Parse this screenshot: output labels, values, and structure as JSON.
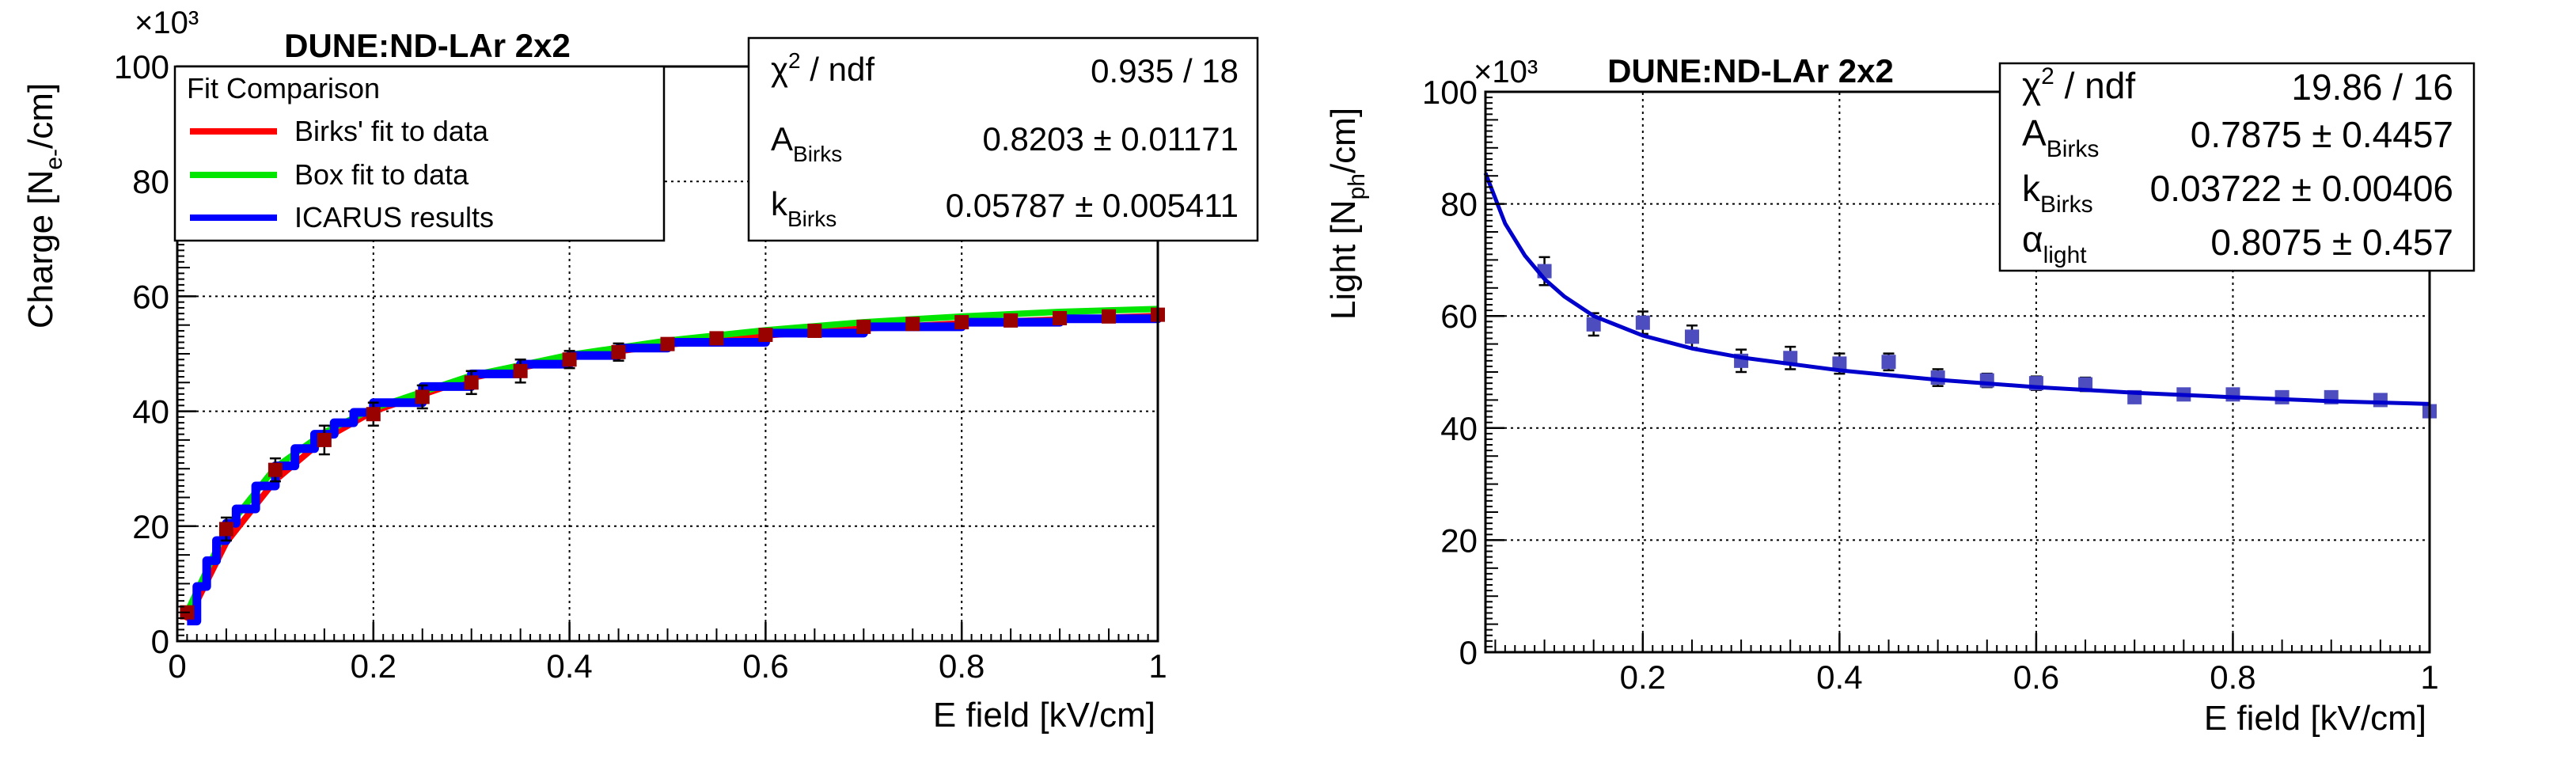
{
  "chart_data": [
    {
      "type": "scatter",
      "title": "DUNE:ND-LAr 2x2",
      "xlabel": "E field [kV/cm]",
      "ylabel": "Charge [N_e-/cm]",
      "y_multiplier": "×10³",
      "xlim": [
        0,
        1
      ],
      "ylim": [
        0,
        100
      ],
      "grid": true,
      "xticks": [
        0,
        0.2,
        0.4,
        0.6,
        0.8,
        1
      ],
      "xtick_labels": [
        "0",
        "0.2",
        "0.4",
        "0.6",
        "0.8",
        "1"
      ],
      "yticks": [
        0,
        20,
        40,
        60,
        80,
        100
      ],
      "ytick_labels": [
        "0",
        "20",
        "40",
        "60",
        "80",
        "100"
      ],
      "legend": {
        "title": "Fit Comparison",
        "placement": "top-left",
        "entries": [
          {
            "label": "Birks' fit to data",
            "color": "#ff0000"
          },
          {
            "label": "Box fit to data",
            "color": "#00e600"
          },
          {
            "label": "ICARUS results",
            "color": "#0000ff"
          }
        ]
      },
      "stats_box": {
        "placement": "top-right",
        "rows": [
          {
            "label": "χ² / ndf",
            "value": "0.935 / 18"
          },
          {
            "label": "A_Birks",
            "value": "0.8203 ± 0.01171"
          },
          {
            "label": "k_Birks",
            "value": "0.05787 ± 0.005411"
          }
        ]
      },
      "series": [
        {
          "name": "data",
          "color": "#990000",
          "x": [
            0.01,
            0.05,
            0.1,
            0.15,
            0.2,
            0.25,
            0.3,
            0.35,
            0.4,
            0.45,
            0.5,
            0.55,
            0.6,
            0.65,
            0.7,
            0.75,
            0.8,
            0.85,
            0.9,
            0.95,
            1.0
          ],
          "y": [
            5.0,
            19.5,
            29.8,
            35.0,
            39.5,
            42.5,
            45.0,
            47.0,
            49.0,
            50.3,
            51.7,
            52.7,
            53.3,
            54.0,
            54.7,
            55.2,
            55.5,
            55.8,
            56.2,
            56.5,
            56.8
          ],
          "yerr": [
            1.0,
            2.0,
            2.0,
            2.5,
            2.0,
            2.0,
            2.0,
            2.0,
            1.5,
            1.5,
            1.0,
            1.0,
            1.0,
            1.0,
            0.8,
            0.8,
            0.8,
            0.8,
            0.8,
            0.8,
            0.8
          ]
        },
        {
          "name": "Birks' fit to data",
          "color": "#ff0000",
          "x": [
            0.01,
            0.05,
            0.1,
            0.15,
            0.2,
            0.3,
            0.4,
            0.5,
            0.6,
            0.7,
            0.8,
            0.9,
            1.0
          ],
          "y": [
            3.5,
            17.2,
            28.0,
            35.2,
            40.0,
            45.8,
            49.3,
            51.6,
            53.2,
            54.4,
            55.3,
            56.0,
            56.6
          ]
        },
        {
          "name": "Box fit to data",
          "color": "#00e600",
          "x": [
            0.01,
            0.05,
            0.1,
            0.15,
            0.2,
            0.3,
            0.4,
            0.5,
            0.6,
            0.7,
            0.8,
            0.9,
            1.0
          ],
          "y": [
            5.0,
            19.5,
            30.2,
            36.3,
            40.5,
            46.2,
            49.8,
            52.3,
            54.1,
            55.5,
            56.5,
            57.3,
            57.8
          ]
        },
        {
          "name": "ICARUS results",
          "color": "#0000ff",
          "x": [
            0.01,
            0.02,
            0.03,
            0.04,
            0.05,
            0.06,
            0.08,
            0.1,
            0.12,
            0.14,
            0.16,
            0.18,
            0.2,
            0.25,
            0.3,
            0.35,
            0.4,
            0.45,
            0.5,
            0.6,
            0.7,
            0.8,
            0.9,
            1.0
          ],
          "y": [
            3.5,
            9.5,
            14.0,
            17.5,
            20.5,
            23.0,
            27.0,
            30.5,
            33.5,
            36.0,
            38.0,
            39.8,
            41.5,
            44.3,
            46.5,
            48.2,
            49.7,
            51.0,
            52.0,
            53.6,
            54.7,
            55.5,
            56.1,
            56.5
          ]
        }
      ]
    },
    {
      "type": "scatter",
      "title": "DUNE:ND-LAr 2x2",
      "xlabel": "E field [kV/cm]",
      "ylabel": "Light [N_ph/cm]",
      "y_multiplier": "×10³",
      "xlim": [
        0.04,
        1
      ],
      "ylim": [
        0,
        100
      ],
      "grid": true,
      "xticks": [
        0.2,
        0.4,
        0.6,
        0.8,
        1
      ],
      "xtick_labels": [
        "0.2",
        "0.4",
        "0.6",
        "0.8",
        "1"
      ],
      "yticks": [
        0,
        20,
        40,
        60,
        80,
        100
      ],
      "ytick_labels": [
        "0",
        "20",
        "40",
        "60",
        "80",
        "100"
      ],
      "stats_box": {
        "placement": "top-right",
        "rows": [
          {
            "label": "χ² / ndf",
            "value": "19.86 / 16"
          },
          {
            "label": "A_Birks",
            "value": "0.7875 ± 0.4457"
          },
          {
            "label": "k_Birks",
            "value": "0.03722 ± 0.00406"
          },
          {
            "label": "α_light",
            "value": "0.8075 ± 0.457"
          }
        ]
      },
      "series": [
        {
          "name": "data",
          "color": "#4d4dbf",
          "x": [
            0.1,
            0.15,
            0.2,
            0.25,
            0.3,
            0.35,
            0.4,
            0.45,
            0.5,
            0.55,
            0.6,
            0.65,
            0.7,
            0.75,
            0.8,
            0.85,
            0.9,
            0.95,
            1.0
          ],
          "y": [
            68.0,
            58.5,
            58.8,
            56.3,
            52.0,
            52.5,
            51.5,
            51.8,
            49.0,
            48.5,
            48.0,
            47.8,
            45.5,
            46.0,
            46.0,
            45.5,
            45.5,
            45.0,
            43.0
          ],
          "yerr": [
            2.5,
            2.0,
            2.0,
            2.0,
            2.0,
            2.0,
            1.8,
            1.5,
            1.5,
            1.2,
            1.2,
            1.2,
            1.0,
            1.0,
            1.0,
            1.0,
            1.0,
            1.0,
            1.0
          ]
        },
        {
          "name": "fit",
          "color": "#0000cc",
          "x": [
            0.04,
            0.06,
            0.08,
            0.1,
            0.12,
            0.15,
            0.2,
            0.25,
            0.3,
            0.4,
            0.5,
            0.6,
            0.7,
            0.8,
            0.9,
            1.0
          ],
          "y": [
            85.5,
            76.5,
            70.8,
            66.6,
            63.5,
            60.0,
            56.5,
            54.2,
            52.6,
            50.3,
            48.6,
            47.3,
            46.3,
            45.5,
            44.8,
            44.3
          ]
        }
      ]
    }
  ]
}
